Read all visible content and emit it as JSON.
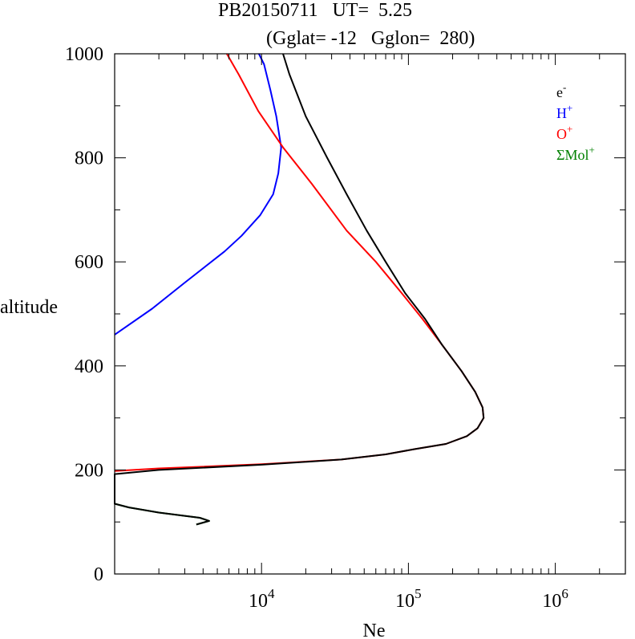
{
  "title": {
    "line1": "PB20150711   UT=  5.25",
    "line2": "(Gglat= -12   Gglon=  280)"
  },
  "chart_data": {
    "type": "line",
    "xlabel": "Ne",
    "ylabel": "altitude",
    "xscale": "log",
    "xlim": [
      1000,
      3000000
    ],
    "ylim": [
      0,
      1000
    ],
    "x_tick_labels": [
      {
        "base": "10",
        "exp": "4",
        "value": 10000
      },
      {
        "base": "10",
        "exp": "5",
        "value": 100000
      },
      {
        "base": "10",
        "exp": "6",
        "value": 1000000
      }
    ],
    "y_tick_labels": [
      "0",
      "200",
      "400",
      "600",
      "800",
      "1000"
    ],
    "y_tick_values": [
      0,
      200,
      400,
      600,
      800,
      1000
    ],
    "legend_placement": "top-right",
    "grid": false,
    "series": [
      {
        "name": "e-",
        "label_base": "e",
        "label_sup": "-",
        "color": "#000000",
        "points": [
          [
            3600,
            95
          ],
          [
            4400,
            102
          ],
          [
            3800,
            108
          ],
          [
            2000,
            118
          ],
          [
            1250,
            128
          ],
          [
            1000,
            135
          ],
          [
            1000,
            192
          ],
          [
            2000,
            200
          ],
          [
            10000,
            210
          ],
          [
            35000,
            220
          ],
          [
            70000,
            230
          ],
          [
            110000,
            240
          ],
          [
            180000,
            250
          ],
          [
            250000,
            265
          ],
          [
            295000,
            280
          ],
          [
            325000,
            300
          ],
          [
            320000,
            320
          ],
          [
            285000,
            350
          ],
          [
            230000,
            390
          ],
          [
            170000,
            440
          ],
          [
            130000,
            490
          ],
          [
            95000,
            540
          ],
          [
            70000,
            600
          ],
          [
            52000,
            660
          ],
          [
            38000,
            730
          ],
          [
            28000,
            800
          ],
          [
            20000,
            880
          ],
          [
            15500,
            960
          ],
          [
            14000,
            1000
          ]
        ]
      },
      {
        "name": "H+",
        "label_base": "H",
        "label_sup": "+",
        "color": "#0000ff",
        "points": [
          [
            1000,
            460
          ],
          [
            1800,
            510
          ],
          [
            3000,
            560
          ],
          [
            5600,
            620
          ],
          [
            7300,
            650
          ],
          [
            9800,
            690
          ],
          [
            12000,
            730
          ],
          [
            13000,
            770
          ],
          [
            13600,
            820
          ],
          [
            12600,
            880
          ],
          [
            11500,
            930
          ],
          [
            10400,
            980
          ],
          [
            9600,
            1000
          ]
        ]
      },
      {
        "name": "O+",
        "label_base": "O",
        "label_sup": "+",
        "color": "#ff0000",
        "points": [
          [
            1000,
            198
          ],
          [
            2000,
            203
          ],
          [
            10000,
            211
          ],
          [
            35000,
            220
          ],
          [
            70000,
            230
          ],
          [
            110000,
            240
          ],
          [
            180000,
            250
          ],
          [
            250000,
            265
          ],
          [
            295000,
            280
          ],
          [
            325000,
            300
          ],
          [
            320000,
            320
          ],
          [
            285000,
            350
          ],
          [
            230000,
            390
          ],
          [
            170000,
            440
          ],
          [
            125000,
            490
          ],
          [
            90000,
            540
          ],
          [
            60000,
            600
          ],
          [
            38000,
            660
          ],
          [
            22000,
            750
          ],
          [
            14000,
            820
          ],
          [
            9500,
            890
          ],
          [
            7000,
            960
          ],
          [
            5800,
            1000
          ]
        ]
      },
      {
        "name": "ΣMol+",
        "label_base": "ΣMol",
        "label_sup": "+",
        "color": "#008000",
        "points": [
          [
            3600,
            95
          ],
          [
            4400,
            102
          ],
          [
            3800,
            108
          ],
          [
            2000,
            118
          ],
          [
            1250,
            128
          ],
          [
            1000,
            135
          ]
        ]
      }
    ]
  }
}
